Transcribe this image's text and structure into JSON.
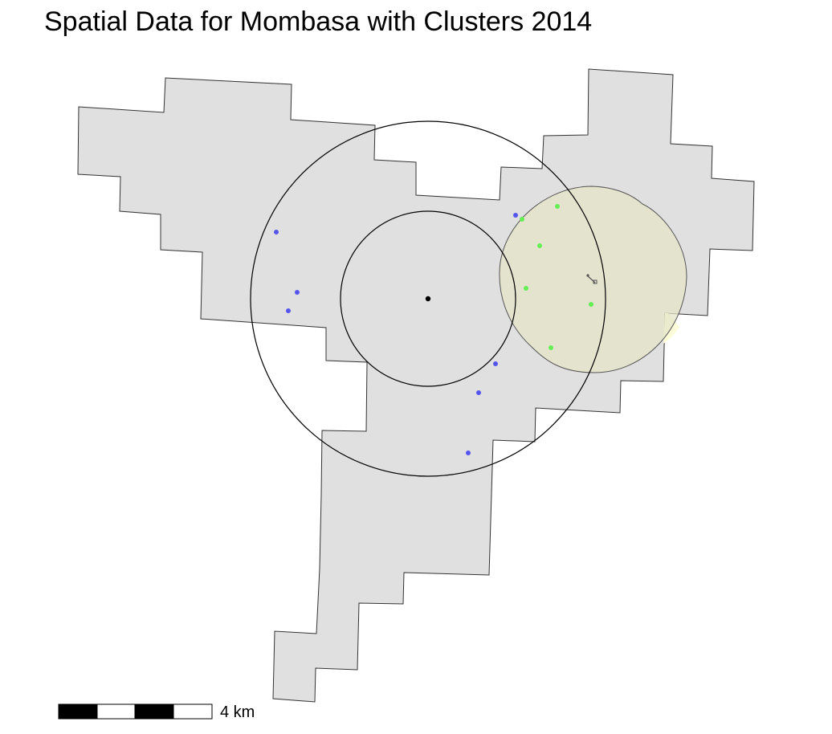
{
  "map": {
    "title": "Spatial Data for Mombasa with Clusters 2014",
    "region_fill": "#e0e0e0",
    "region_stroke": "#333333",
    "blue_point_color": "#5555ee",
    "green_point_color": "#66ee55",
    "cluster_circle_fill": "#e4e4c8",
    "center_point_color": "#000000",
    "cluster_label_icon": "pin-icon",
    "scale_bar": {
      "label": "4 km",
      "segments": 4,
      "colors": [
        "#000000",
        "#ffffff",
        "#000000",
        "#ffffff"
      ]
    }
  }
}
